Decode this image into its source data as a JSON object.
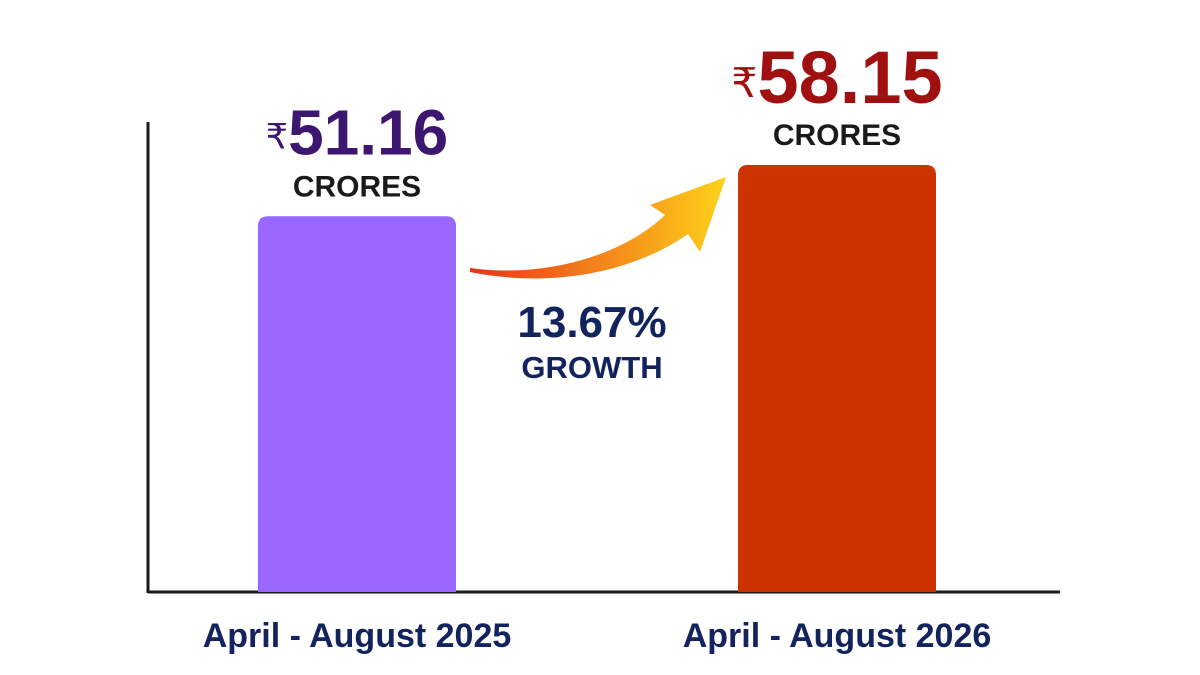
{
  "chart_data": {
    "type": "bar",
    "categories": [
      "April - August 2025",
      "April - August 2026"
    ],
    "values": [
      51.16,
      58.15
    ],
    "value_labels": [
      "51.16",
      "58.15"
    ],
    "currency_symbol": "₹",
    "unit": "CRORES",
    "ylim": [
      0,
      64
    ],
    "grid": false,
    "bar_colors": [
      "#9966ff",
      "#cc3300"
    ],
    "value_label_colors": [
      "#3d1670",
      "#a01010"
    ],
    "axis_label_color": "#13235e",
    "annotation": {
      "value": "13.67%",
      "text": "GROWTH",
      "color": "#13235e",
      "arrow_gradient": [
        "#e8331a",
        "#ffd21a"
      ]
    }
  }
}
